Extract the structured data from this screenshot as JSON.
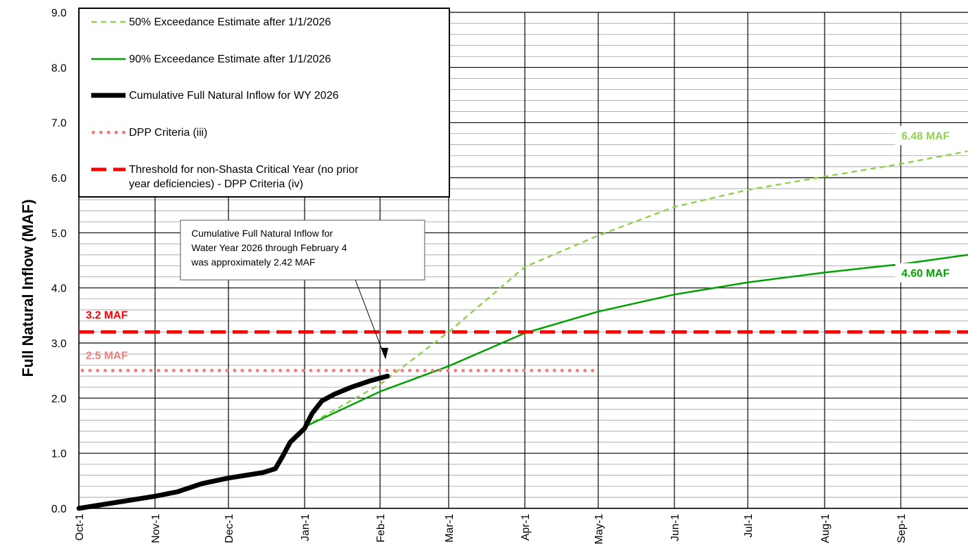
{
  "chart_data": {
    "type": "line",
    "ylabel": "Full Natural Inflow (MAF)",
    "ylim": [
      0,
      9
    ],
    "yticks": [
      "0.0",
      "1.0",
      "2.0",
      "3.0",
      "4.0",
      "5.0",
      "6.0",
      "7.0",
      "8.0",
      "9.0"
    ],
    "xticks": [
      "Oct-1",
      "Nov-1",
      "Dec-1",
      "Jan-1",
      "Feb-1",
      "Mar-1",
      "Apr-1",
      "May-1",
      "Jun-1",
      "Jul-1",
      "Aug-1",
      "Sep-1"
    ],
    "grid": true,
    "legend_position": "top-left",
    "series": [
      {
        "name": "50% Exceedance Estimate after 1/1/2026",
        "color": "#92d050",
        "style": "dashed",
        "points": [
          [
            "Jan-1",
            1.48
          ],
          [
            "Feb-1",
            2.25
          ],
          [
            "Mar-1",
            3.2
          ],
          [
            "Apr-1",
            4.38
          ],
          [
            "May-1",
            4.95
          ],
          [
            "Jun-1",
            5.47
          ],
          [
            "Jul-1",
            5.78
          ],
          [
            "Aug-1",
            6.02
          ],
          [
            "Sep-1",
            6.25
          ],
          [
            "Sep-30",
            6.48
          ]
        ]
      },
      {
        "name": "90% Exceedance Estimate after 1/1/2026",
        "color": "#00a000",
        "style": "solid",
        "points": [
          [
            "Jan-1",
            1.48
          ],
          [
            "Feb-1",
            2.12
          ],
          [
            "Mar-1",
            2.58
          ],
          [
            "Apr-1",
            3.18
          ],
          [
            "May-1",
            3.57
          ],
          [
            "Jun-1",
            3.88
          ],
          [
            "Jul-1",
            4.1
          ],
          [
            "Aug-1",
            4.28
          ],
          [
            "Sep-1",
            4.43
          ],
          [
            "Sep-30",
            4.6
          ]
        ]
      },
      {
        "name": "Cumulative Full Natural Inflow for WY 2026",
        "color": "#000000",
        "style": "thick",
        "points": [
          [
            "Oct-1",
            0.0
          ],
          [
            "Oct-15",
            0.1
          ],
          [
            "Nov-1",
            0.22
          ],
          [
            "Nov-10",
            0.3
          ],
          [
            "Nov-20",
            0.45
          ],
          [
            "Dec-1",
            0.55
          ],
          [
            "Dec-15",
            0.65
          ],
          [
            "Dec-20",
            0.72
          ],
          [
            "Dec-23",
            0.95
          ],
          [
            "Dec-26",
            1.2
          ],
          [
            "Dec-29",
            1.33
          ],
          [
            "Jan-1",
            1.45
          ],
          [
            "Jan-4",
            1.72
          ],
          [
            "Jan-8",
            1.95
          ],
          [
            "Jan-13",
            2.07
          ],
          [
            "Jan-20",
            2.2
          ],
          [
            "Jan-28",
            2.32
          ],
          [
            "Feb-4",
            2.4
          ]
        ]
      },
      {
        "name": "DPP Criteria (iii)",
        "color": "#f08080",
        "style": "dotted",
        "value": 2.5,
        "x_start": "Oct-1",
        "x_end": "Apr-30"
      },
      {
        "name": "Threshold for non-Shasta Critical Year (no prior year deficiencies) - DPP Criteria (iv)",
        "color": "#ff0000",
        "style": "thick-dashed",
        "value": 3.2
      }
    ],
    "annotations": [
      {
        "text": "6.48 MAF",
        "color": "#92d050"
      },
      {
        "text": "4.60 MAF",
        "color": "#00a000"
      },
      {
        "text": "3.2 MAF",
        "color": "#ff0000"
      },
      {
        "text": "2.5 MAF",
        "color": "#f08080"
      }
    ],
    "callout": {
      "lines": [
        "Cumulative Full Natural Inflow for",
        "Water Year 2026 through February 4",
        "was approximately 2.42 MAF"
      ]
    }
  }
}
